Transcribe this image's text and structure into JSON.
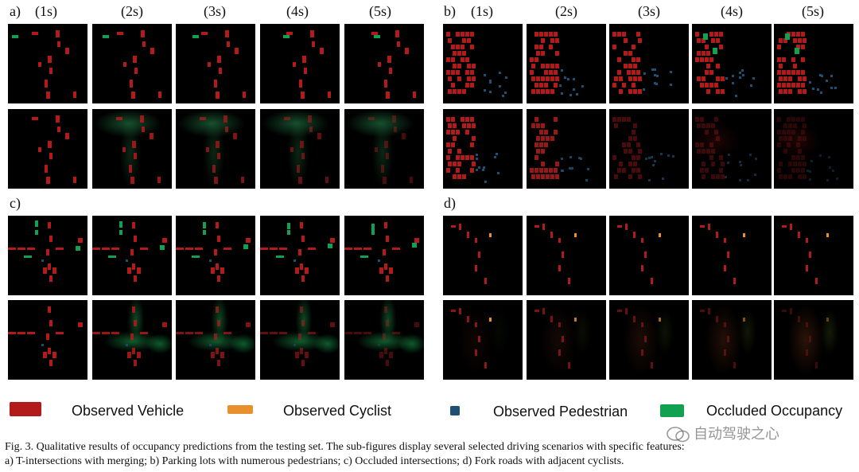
{
  "panels": {
    "a": {
      "label": "a)"
    },
    "b": {
      "label": "b)"
    },
    "c": {
      "label": "c)"
    },
    "d": {
      "label": "d)"
    }
  },
  "time_labels": [
    "(1s)",
    "(2s)",
    "(3s)",
    "(4s)",
    "(5s)"
  ],
  "legend": [
    {
      "label": "Observed Vehicle",
      "color": "#b31b1b"
    },
    {
      "label": "Observed Cyclist",
      "color": "#e8902c"
    },
    {
      "label": "Observed Pedestrian",
      "color": "#1f4f73"
    },
    {
      "label": "Occluded Occupancy",
      "color": "#12a150"
    }
  ],
  "caption": {
    "line1": "Fig. 3.   Qualitative results of occupancy predictions from the testing set. The sub-figures display several selected driving scenarios with specific features:",
    "line2": "a) T-intersections with merging; b) Parking lots with numerous pedestrians; c) Occluded intersections; d) Fork roads with adjacent cyclists."
  },
  "watermark": "自动驾驶之心"
}
